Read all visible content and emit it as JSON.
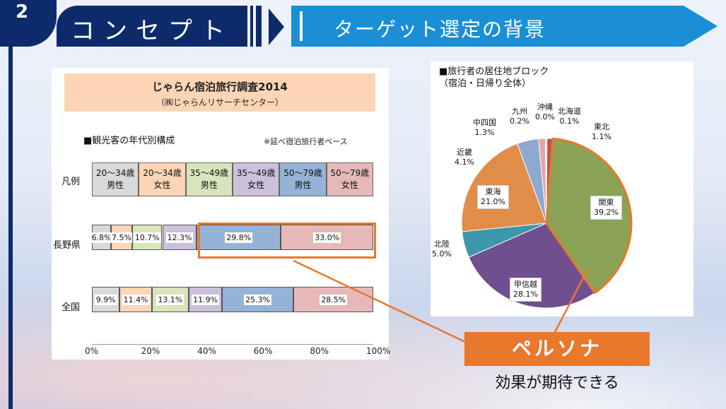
{
  "header": {
    "number": "2",
    "title": "コンセプト",
    "subtitle": "ターゲット選定の背景"
  },
  "survey": {
    "title": "じゃらん宿泊旅行調査2014",
    "source": "㈱じゃらんリサーチセンター）",
    "section_title": "■観光客の年代別構成",
    "note": "※延べ宿泊旅行者ベース"
  },
  "chart_data": [
    {
      "type": "bar",
      "title": "■観光客の年代別構成",
      "orientation": "horizontal-stacked-100",
      "categories": [
        "長野県",
        "全国"
      ],
      "legend_label": "凡例",
      "series": [
        {
          "name": "20〜34歳 男性",
          "color": "#d9d9d9",
          "values": [
            6.8,
            9.9
          ]
        },
        {
          "name": "20〜34歳 女性",
          "color": "#fbd5b5",
          "values": [
            7.5,
            11.4
          ]
        },
        {
          "name": "35〜49歳 男性",
          "color": "#d7e4bc",
          "values": [
            10.7,
            13.1
          ]
        },
        {
          "name": "35〜49歳 女性",
          "color": "#ccc0da",
          "values": [
            12.3,
            11.9
          ]
        },
        {
          "name": "50〜79歳 男性",
          "color": "#95b3d7",
          "values": [
            29.8,
            25.3
          ]
        },
        {
          "name": "50〜79歳 女性",
          "color": "#e6b9b8",
          "values": [
            33.0,
            28.5
          ]
        }
      ],
      "value_labels": [
        [
          "6.8%",
          "7.5%",
          "10.7%",
          "12.3%",
          "29.8%",
          "33.0%"
        ],
        [
          "9.9%",
          "11.4%",
          "13.1%",
          "11.9%",
          "25.3%",
          "28.5%"
        ]
      ],
      "x_ticks": [
        "0%",
        "20%",
        "40%",
        "60%",
        "80%",
        "100%"
      ],
      "xlim": [
        0,
        100
      ]
    },
    {
      "type": "pie",
      "title": "■旅行者の居住地ブロック （宿泊・日帰り全体）",
      "slices": [
        {
          "name": "北海道",
          "value": 0.1,
          "label": "0.1%",
          "color": "#f2dcdb"
        },
        {
          "name": "東北",
          "value": 1.1,
          "label": "1.1%",
          "color": "#c0504d"
        },
        {
          "name": "関東",
          "value": 39.2,
          "label": "39.2%",
          "color": "#8aa356"
        },
        {
          "name": "甲信越",
          "value": 28.1,
          "label": "28.1%",
          "color": "#6f4f8f"
        },
        {
          "name": "北陸",
          "value": 5.0,
          "label": "5.0%",
          "color": "#3d97aa"
        },
        {
          "name": "東海",
          "value": 21.0,
          "label": "21.0%",
          "color": "#e28c4a"
        },
        {
          "name": "近畿",
          "value": 4.1,
          "label": "4.1%",
          "color": "#8ea8cf"
        },
        {
          "name": "中四国",
          "value": 1.3,
          "label": "1.3%",
          "color": "#e6a5a3"
        },
        {
          "name": "九州",
          "value": 0.2,
          "label": "0.2%",
          "color": "#c3d69b"
        },
        {
          "name": "沖縄",
          "value": 0.0,
          "label": "0.0%",
          "color": "#b3a2c7"
        }
      ]
    }
  ],
  "pie": {
    "title_line1": "■旅行者の居住地ブロック",
    "title_line2": "（宿泊・日帰り全体）",
    "highlight_color": "#e8782c"
  },
  "callout": {
    "persona": "ペルソナ",
    "expectation": "効果が期待できる",
    "color": "#e8782c"
  }
}
